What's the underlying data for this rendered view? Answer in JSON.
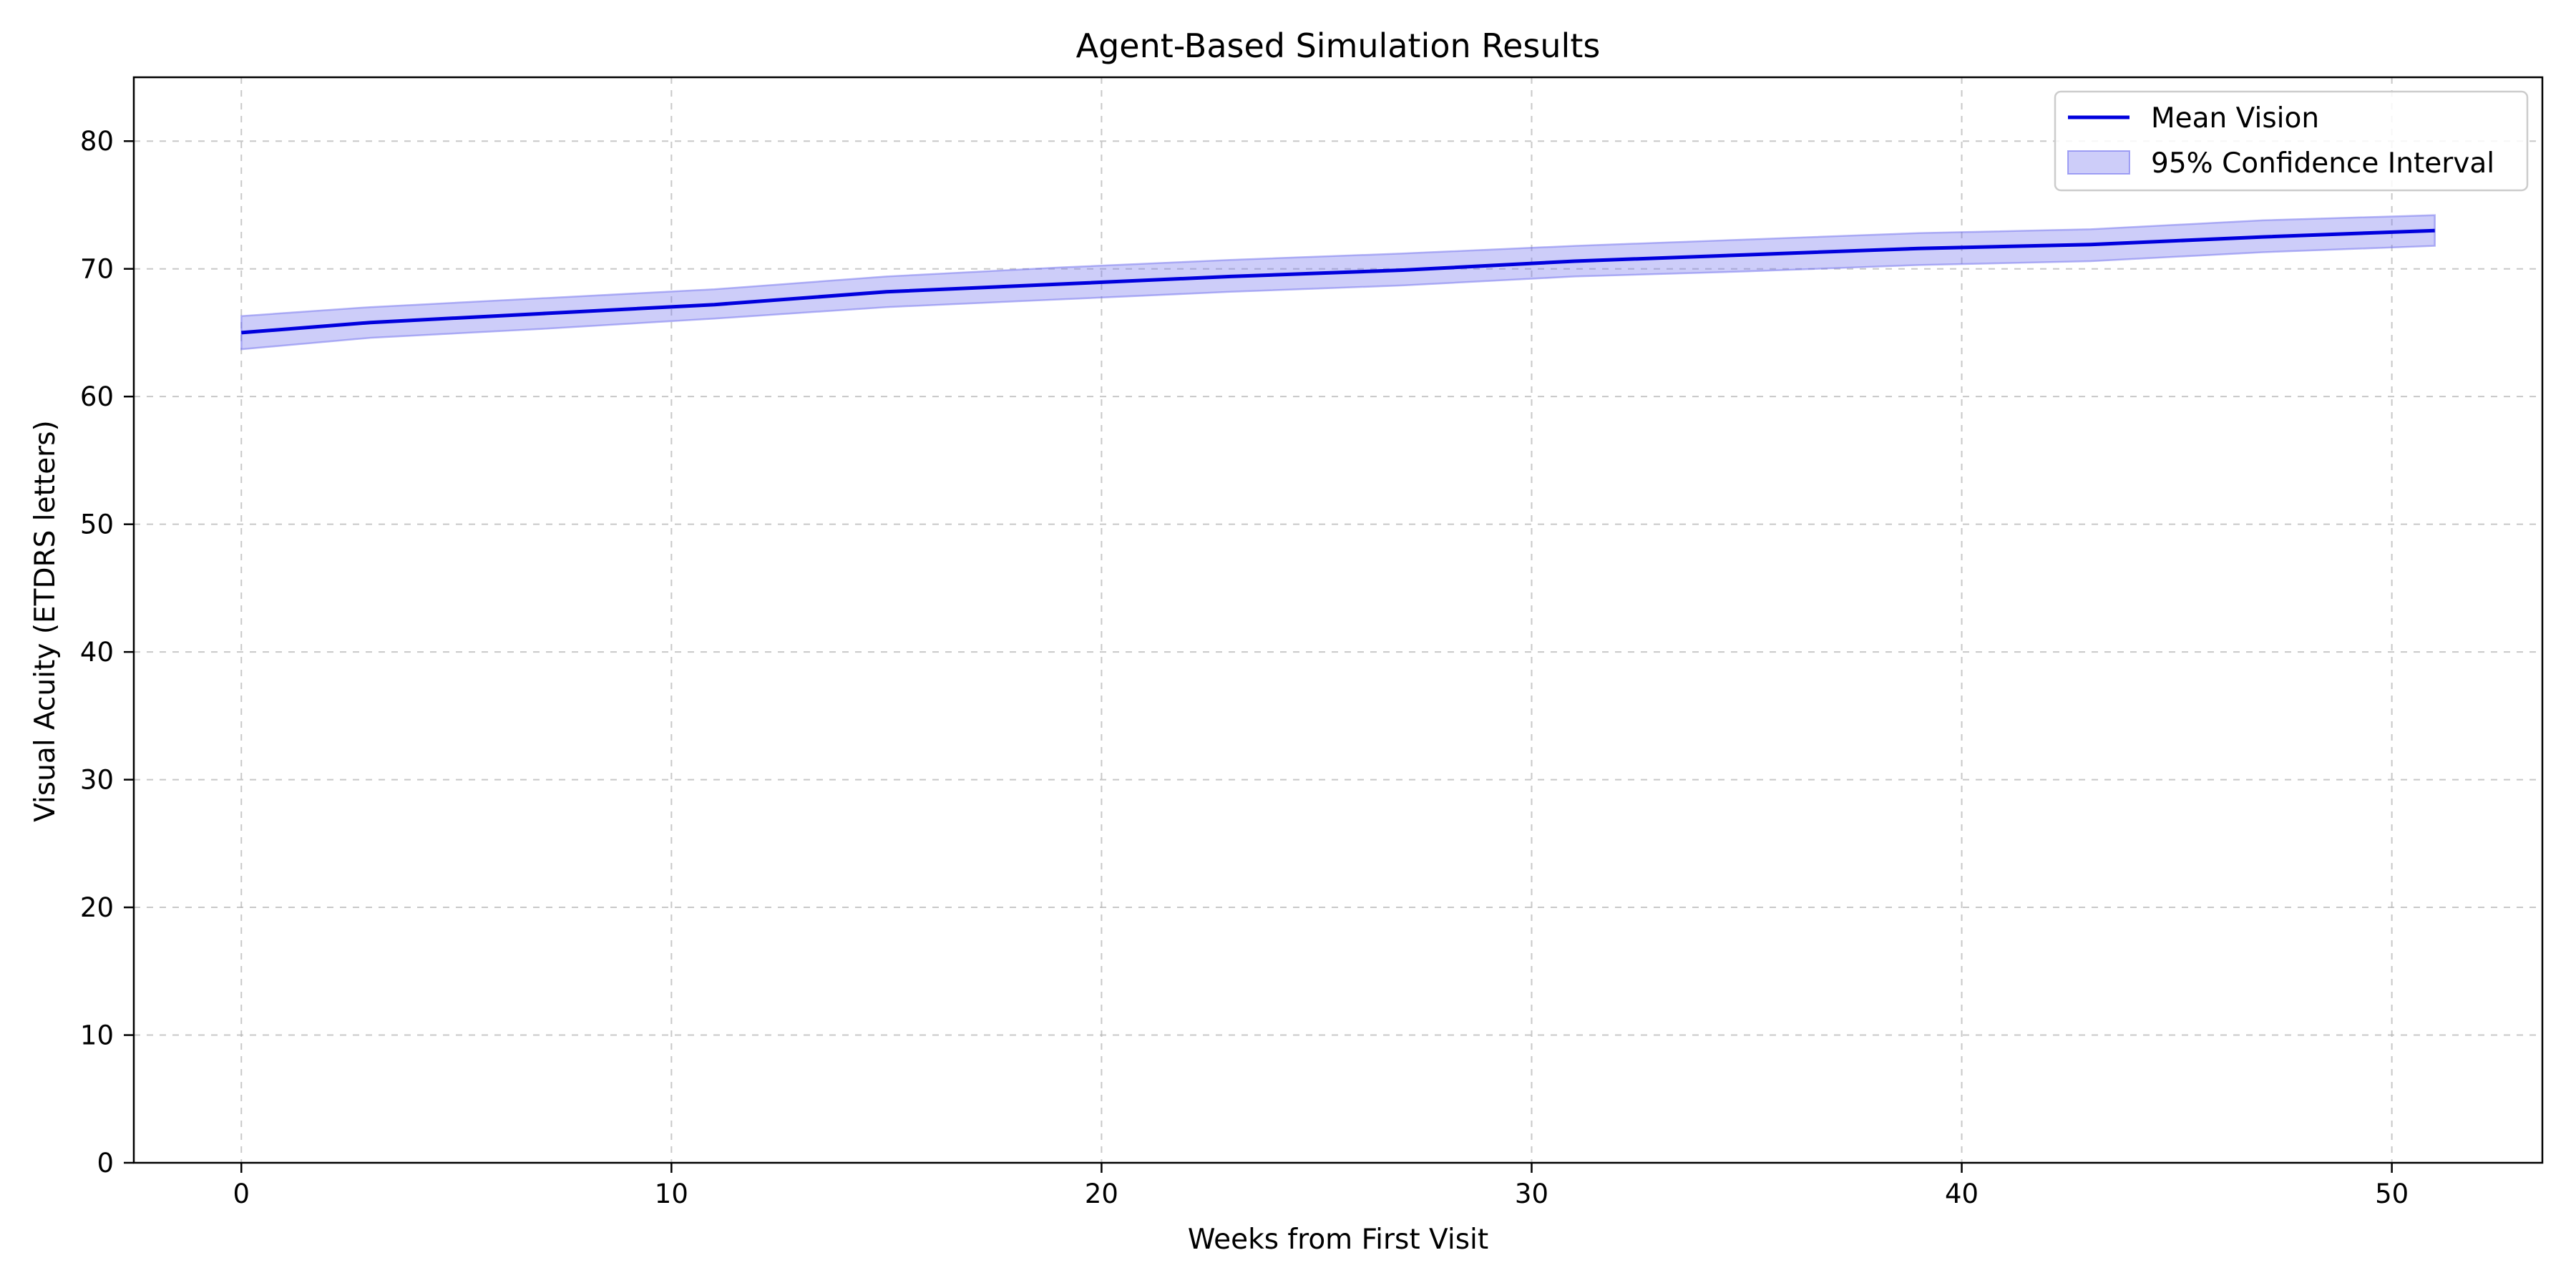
{
  "chart_data": {
    "type": "line",
    "title": "Agent-Based Simulation Results",
    "xlabel": "Weeks from First Visit",
    "ylabel": "Visual Acuity (ETDRS letters)",
    "xlim": [
      -2.5,
      53.5
    ],
    "ylim": [
      0,
      85
    ],
    "xticks": [
      0,
      10,
      20,
      30,
      40,
      50
    ],
    "yticks": [
      0,
      10,
      20,
      30,
      40,
      50,
      60,
      70,
      80
    ],
    "grid": true,
    "legend_position": "top-right",
    "series": [
      {
        "name": "Mean Vision",
        "color": "#0000dd",
        "x": [
          0,
          3,
          7,
          11,
          15,
          19,
          23,
          27,
          31,
          35,
          39,
          43,
          47,
          51
        ],
        "values": [
          65.0,
          65.8,
          66.5,
          67.2,
          68.2,
          68.8,
          69.4,
          69.9,
          70.6,
          71.1,
          71.6,
          71.9,
          72.5,
          73.0
        ]
      }
    ],
    "band": {
      "name": "95% Confidence Interval",
      "color": "#7070ee",
      "x": [
        0,
        3,
        7,
        11,
        15,
        19,
        23,
        27,
        31,
        35,
        39,
        43,
        47,
        51
      ],
      "lower": [
        63.7,
        64.6,
        65.3,
        66.1,
        67.0,
        67.6,
        68.2,
        68.7,
        69.4,
        69.8,
        70.3,
        70.6,
        71.3,
        71.8
      ],
      "upper": [
        66.3,
        67.0,
        67.7,
        68.4,
        69.4,
        70.1,
        70.7,
        71.2,
        71.8,
        72.3,
        72.8,
        73.1,
        73.8,
        74.2
      ]
    }
  }
}
